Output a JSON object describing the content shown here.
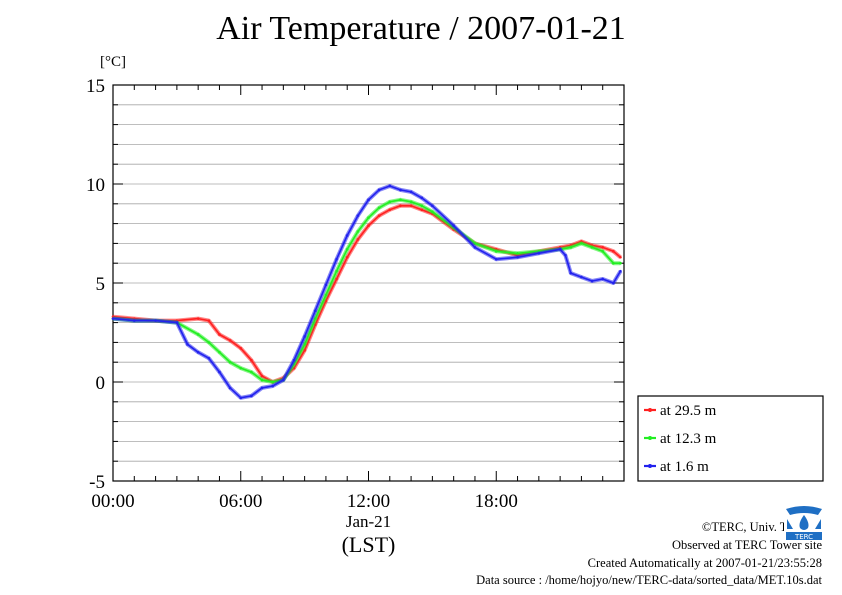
{
  "title": "Air Temperature / 2007-01-21",
  "chart_data": {
    "type": "line",
    "ylabel": "[°C]",
    "ylim": [
      -5,
      15
    ],
    "yticks": [
      -5,
      0,
      5,
      10,
      15
    ],
    "xlim": [
      "2007-01-21 00:00",
      "2007-01-22 00:00"
    ],
    "xticks": [
      {
        "x": "2007-01-21 00:00",
        "label": "00:00"
      },
      {
        "x": "2007-01-21 06:00",
        "label": "06:00"
      },
      {
        "x": "2007-01-21 12:00",
        "label": "12:00"
      },
      {
        "x": "2007-01-21 18:00",
        "label": "18:00"
      }
    ],
    "date_label": "Jan-21",
    "xlabel": "(LST)",
    "grid": true,
    "legend_position": "right",
    "series": [
      {
        "name": "at 29.5 m",
        "color": "#ff2020",
        "x": [
          "2007-01-21 00:00",
          "2007-01-21 01:00",
          "2007-01-21 02:00",
          "2007-01-21 03:00",
          "2007-01-21 04:00",
          "2007-01-21 04:30",
          "2007-01-21 05:00",
          "2007-01-21 05:30",
          "2007-01-21 06:00",
          "2007-01-21 06:30",
          "2007-01-21 07:00",
          "2007-01-21 07:30",
          "2007-01-21 08:00",
          "2007-01-21 08:30",
          "2007-01-21 09:00",
          "2007-01-21 09:30",
          "2007-01-21 10:00",
          "2007-01-21 10:30",
          "2007-01-21 11:00",
          "2007-01-21 11:30",
          "2007-01-21 12:00",
          "2007-01-21 12:30",
          "2007-01-21 13:00",
          "2007-01-21 13:30",
          "2007-01-21 14:00",
          "2007-01-21 14:30",
          "2007-01-21 15:00",
          "2007-01-21 16:00",
          "2007-01-21 17:00",
          "2007-01-21 18:00",
          "2007-01-21 19:00",
          "2007-01-21 20:00",
          "2007-01-21 21:00",
          "2007-01-21 21:30",
          "2007-01-21 22:00",
          "2007-01-21 22:30",
          "2007-01-21 23:00",
          "2007-01-21 23:30",
          "2007-01-21 23:50"
        ],
        "values": [
          3.3,
          3.2,
          3.1,
          3.1,
          3.2,
          3.1,
          2.4,
          2.1,
          1.7,
          1.1,
          0.3,
          0.0,
          0.2,
          0.7,
          1.6,
          2.9,
          4.1,
          5.2,
          6.3,
          7.2,
          7.9,
          8.4,
          8.7,
          8.9,
          8.9,
          8.7,
          8.5,
          7.7,
          7.0,
          6.7,
          6.4,
          6.6,
          6.8,
          6.9,
          7.1,
          6.9,
          6.8,
          6.6,
          6.3
        ]
      },
      {
        "name": "at 12.3 m",
        "color": "#22ee22",
        "x": [
          "2007-01-21 00:00",
          "2007-01-21 01:00",
          "2007-01-21 02:00",
          "2007-01-21 03:00",
          "2007-01-21 04:00",
          "2007-01-21 04:30",
          "2007-01-21 05:00",
          "2007-01-21 05:30",
          "2007-01-21 06:00",
          "2007-01-21 06:30",
          "2007-01-21 07:00",
          "2007-01-21 07:30",
          "2007-01-21 08:00",
          "2007-01-21 08:30",
          "2007-01-21 09:00",
          "2007-01-21 09:30",
          "2007-01-21 10:00",
          "2007-01-21 10:30",
          "2007-01-21 11:00",
          "2007-01-21 11:30",
          "2007-01-21 12:00",
          "2007-01-21 12:30",
          "2007-01-21 13:00",
          "2007-01-21 13:30",
          "2007-01-21 14:00",
          "2007-01-21 14:30",
          "2007-01-21 15:00",
          "2007-01-21 16:00",
          "2007-01-21 17:00",
          "2007-01-21 18:00",
          "2007-01-21 19:00",
          "2007-01-21 20:00",
          "2007-01-21 21:00",
          "2007-01-21 21:30",
          "2007-01-21 22:00",
          "2007-01-21 22:30",
          "2007-01-21 23:00",
          "2007-01-21 23:30",
          "2007-01-21 23:50"
        ],
        "values": [
          3.2,
          3.1,
          3.1,
          3.0,
          2.4,
          2.0,
          1.5,
          1.0,
          0.7,
          0.5,
          0.1,
          0.0,
          0.1,
          0.9,
          1.9,
          3.2,
          4.4,
          5.6,
          6.7,
          7.6,
          8.3,
          8.8,
          9.1,
          9.2,
          9.1,
          8.9,
          8.6,
          7.8,
          7.0,
          6.6,
          6.5,
          6.6,
          6.7,
          6.8,
          7.0,
          6.8,
          6.6,
          6.0,
          6.0
        ]
      },
      {
        "name": "at 1.6 m",
        "color": "#2222ee",
        "x": [
          "2007-01-21 00:00",
          "2007-01-21 01:00",
          "2007-01-21 02:00",
          "2007-01-21 03:00",
          "2007-01-21 03:30",
          "2007-01-21 04:00",
          "2007-01-21 04:30",
          "2007-01-21 05:00",
          "2007-01-21 05:30",
          "2007-01-21 06:00",
          "2007-01-21 06:30",
          "2007-01-21 07:00",
          "2007-01-21 07:30",
          "2007-01-21 08:00",
          "2007-01-21 08:30",
          "2007-01-21 09:00",
          "2007-01-21 09:30",
          "2007-01-21 10:00",
          "2007-01-21 10:30",
          "2007-01-21 11:00",
          "2007-01-21 11:30",
          "2007-01-21 12:00",
          "2007-01-21 12:30",
          "2007-01-21 13:00",
          "2007-01-21 13:30",
          "2007-01-21 14:00",
          "2007-01-21 14:30",
          "2007-01-21 15:00",
          "2007-01-21 16:00",
          "2007-01-21 17:00",
          "2007-01-21 18:00",
          "2007-01-21 19:00",
          "2007-01-21 20:00",
          "2007-01-21 21:00",
          "2007-01-21 21:15",
          "2007-01-21 21:30",
          "2007-01-21 22:00",
          "2007-01-21 22:30",
          "2007-01-21 23:00",
          "2007-01-21 23:30",
          "2007-01-21 23:50"
        ],
        "values": [
          3.2,
          3.1,
          3.1,
          3.0,
          1.9,
          1.5,
          1.2,
          0.5,
          -0.3,
          -0.8,
          -0.7,
          -0.3,
          -0.2,
          0.1,
          1.1,
          2.3,
          3.6,
          4.9,
          6.2,
          7.4,
          8.4,
          9.2,
          9.7,
          9.9,
          9.7,
          9.6,
          9.3,
          8.9,
          7.9,
          6.8,
          6.2,
          6.3,
          6.5,
          6.7,
          6.4,
          5.5,
          5.3,
          5.1,
          5.2,
          5.0,
          5.6
        ]
      }
    ]
  },
  "footer": {
    "copyright": "©TERC, Univ. Tsukuba",
    "observed": "Observed at TERC Tower site",
    "created": "Created Automatically at 2007-01-21/23:55:28",
    "source": "Data source : /home/hojyo/new/TERC-data/sorted_data/MET.10s.dat"
  },
  "logo": {
    "text": "TERC",
    "color": "#1f6fc4"
  }
}
